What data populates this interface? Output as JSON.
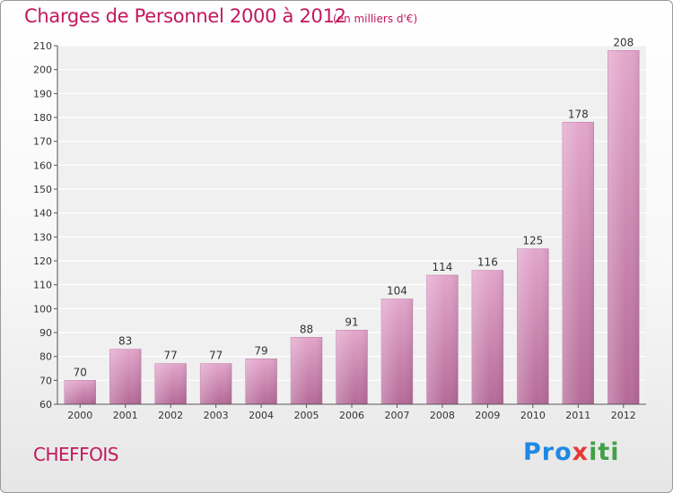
{
  "chart_data": {
    "type": "bar",
    "title": "Charges de Personnel 2000 à 2012",
    "subtitle": "(en milliers d'€)",
    "categories": [
      "2000",
      "2001",
      "2002",
      "2003",
      "2004",
      "2005",
      "2006",
      "2007",
      "2008",
      "2009",
      "2010",
      "2011",
      "2012"
    ],
    "values": [
      70,
      83,
      77,
      77,
      79,
      88,
      91,
      104,
      114,
      116,
      125,
      178,
      208
    ],
    "ylim": [
      60,
      210
    ],
    "yticks": [
      60,
      70,
      80,
      90,
      100,
      110,
      120,
      130,
      140,
      150,
      160,
      170,
      180,
      190,
      200,
      210
    ],
    "grid": true,
    "bar_color": "#d98ab8"
  },
  "footer": {
    "commune": "CHEFFOIS",
    "logo": [
      "Pro",
      "x",
      "iti"
    ]
  }
}
